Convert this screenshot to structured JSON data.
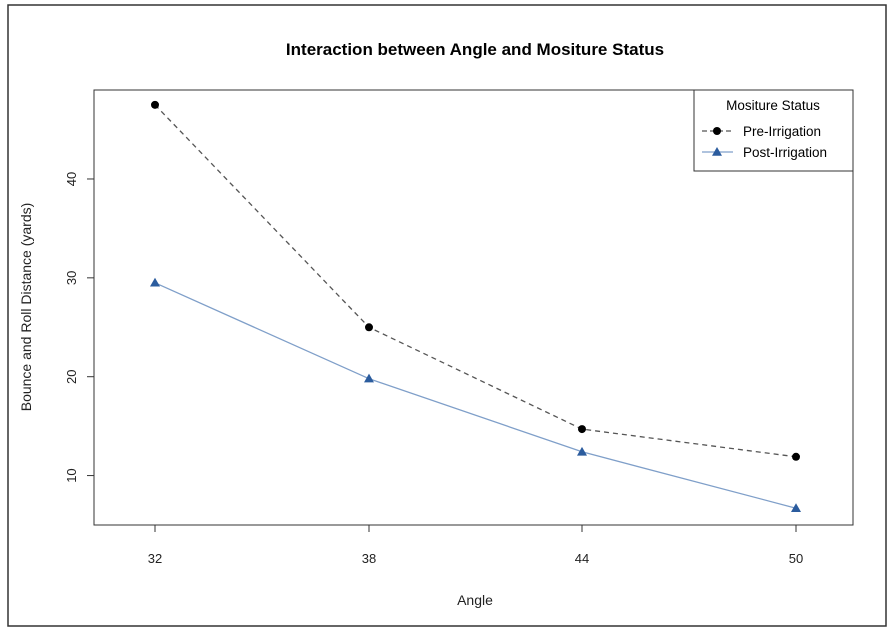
{
  "chart_data": {
    "type": "line",
    "title": "Interaction between Angle and Mositure Status",
    "xlabel": "Angle",
    "ylabel": "Bounce and Roll Distance (yards)",
    "categories": [
      "32",
      "38",
      "44",
      "50"
    ],
    "ylim": [
      5,
      49
    ],
    "yticks": [
      "10",
      "20",
      "30",
      "40"
    ],
    "grid": false,
    "legend": {
      "title": "Mositure Status",
      "position": "top-right"
    },
    "series": [
      {
        "name": "Pre-Irrigation",
        "values": [
          47.5,
          25.0,
          14.7,
          11.9
        ],
        "color": "#000000",
        "line": "dashed",
        "line_color": "#555555",
        "marker": "circle"
      },
      {
        "name": "Post-Irrigation",
        "values": [
          29.5,
          19.8,
          12.4,
          6.7
        ],
        "color": "#2b5c9e",
        "line": "solid",
        "line_color": "#7f9fc9",
        "marker": "triangle"
      }
    ]
  }
}
